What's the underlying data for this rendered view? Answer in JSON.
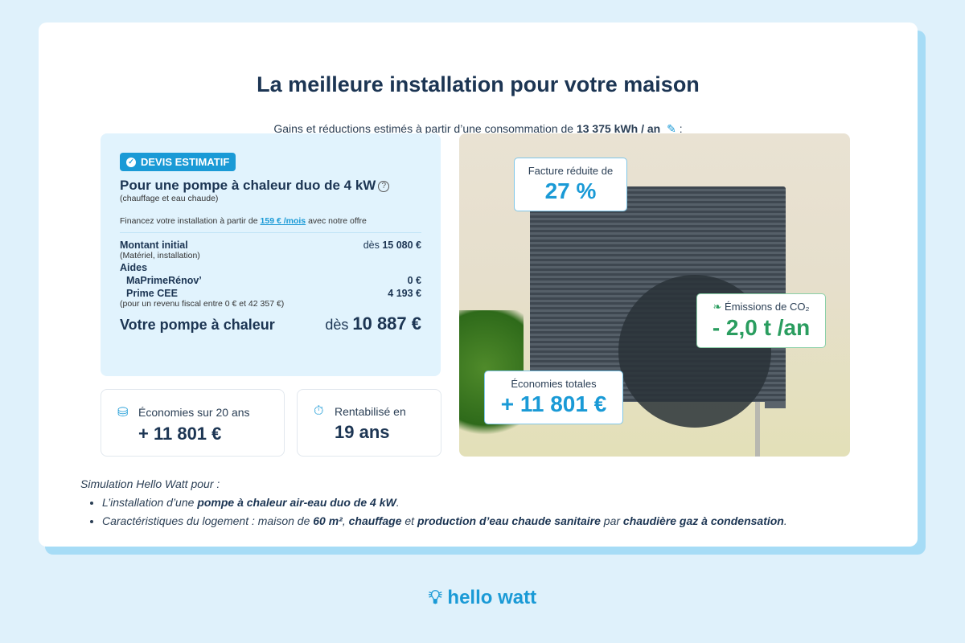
{
  "title": "La meilleure installation pour votre maison",
  "subtitle": {
    "prefix": "Gains et réductions estimés à partir d’une consommation de",
    "consumption": "13 375 kWh / an",
    "suffix": ":"
  },
  "quote": {
    "badge": "DEVIS ESTIMATIF",
    "heading": "Pour une pompe à chaleur duo de 4 kW",
    "heading_note": "(chauffage et eau chaude)",
    "finance_prefix": "Financez votre installation à partir de",
    "finance_link": "159 € /mois",
    "finance_suffix": "avec notre offre",
    "initial_label": "Montant initial",
    "initial_prefix": "dès",
    "initial_value": "15 080 €",
    "initial_note": "(Matériel, installation)",
    "aides_label": "Aides",
    "aides": [
      {
        "label": "MaPrimeRénov’",
        "value": "0 €"
      },
      {
        "label": "Prime CEE",
        "value": "4 193 €"
      }
    ],
    "income_note": "(pour un revenu fiscal entre 0 € et 42 357 €)",
    "total_label": "Votre pompe à chaleur",
    "total_prefix": "dès",
    "total_value": "10 887 €"
  },
  "stats": [
    {
      "label": "Économies sur 20 ans",
      "value": "+ 11 801 €",
      "icon": "coins-icon"
    },
    {
      "label": "Rentabilisé en",
      "value": "19 ans",
      "icon": "stopwatch-icon"
    }
  ],
  "overlays": {
    "bill": {
      "label": "Facture réduite de",
      "value": "27 %"
    },
    "co2": {
      "label": "Émissions de CO₂",
      "value": "- 2,0 t /an"
    },
    "savings": {
      "label": "Économies totales",
      "value": "+ 11 801 €"
    }
  },
  "notes": {
    "intro": "Simulation Hello Watt pour :",
    "item1": {
      "a": "L’installation d’une ",
      "b": "pompe à chaleur air-eau duo de 4 kW",
      "c": "."
    },
    "item2": {
      "a": "Caractéristiques du logement : maison de ",
      "b": "60 m²",
      "c": ", ",
      "d": "chauffage",
      "e": " et ",
      "f": "production d’eau chaude sanitaire",
      "g": " par ",
      "h": "chaudière gaz à condensation",
      "i": "."
    }
  },
  "logo": "hello watt",
  "colors": {
    "accent": "#1a9ad6",
    "green": "#2a9d5f",
    "text": "#1c3553"
  }
}
